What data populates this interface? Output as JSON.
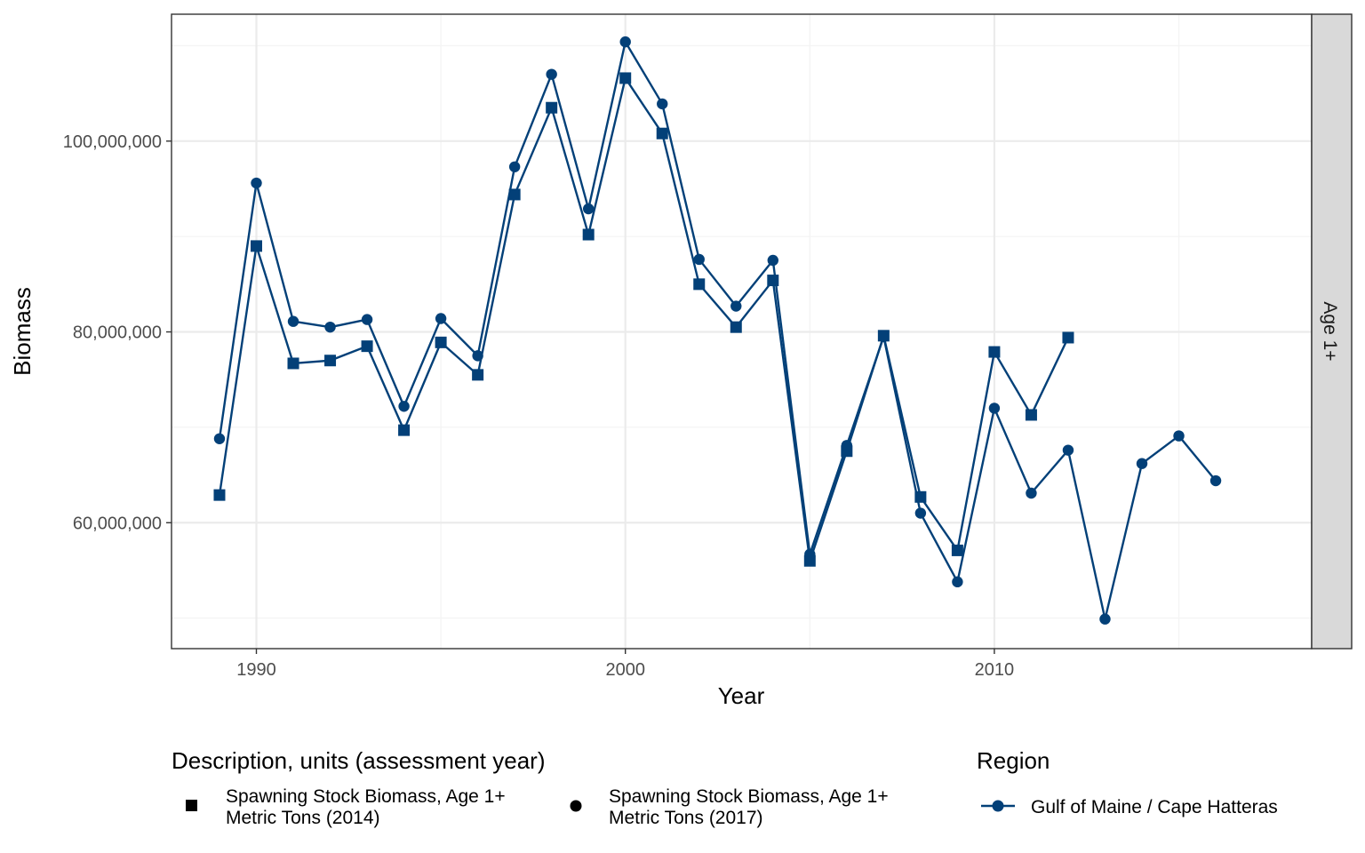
{
  "colors": {
    "series": "#034078",
    "grid_major": "#ebebeb",
    "grid_minor": "#f4f4f4",
    "panel_border": "#333333",
    "strip_fill": "#d9d9d9",
    "legend_key_black": "#000000"
  },
  "chart_data": {
    "type": "line",
    "xlabel": "Year",
    "ylabel": "Biomass",
    "xlim": [
      1987.7,
      2018.6
    ],
    "ylim": [
      46800000,
      113300000
    ],
    "x_ticks": [
      1990,
      2000,
      2010
    ],
    "x_tick_labels": [
      "1990",
      "2000",
      "2010"
    ],
    "x_minor_ticks": [
      1995,
      2005,
      2015
    ],
    "y_ticks": [
      60000000,
      80000000,
      100000000
    ],
    "y_tick_labels": [
      "60,000,000",
      "80,000,000",
      "100,000,000"
    ],
    "y_minor_ticks": [
      50000000,
      70000000,
      90000000,
      110000000
    ],
    "grid": true,
    "facet_label": "Age 1+",
    "series": [
      {
        "name": "Spawning Stock Biomass, Age 1+ Metric Tons (2014)",
        "marker": "square",
        "region": "Gulf of Maine / Cape Hatteras",
        "x": [
          1989,
          1990,
          1991,
          1992,
          1993,
          1994,
          1995,
          1996,
          1997,
          1998,
          1999,
          2000,
          2001,
          2002,
          2003,
          2004,
          2005,
          2006,
          2007,
          2008,
          2009,
          2010,
          2011,
          2012
        ],
        "values": [
          62900000,
          89000000,
          76700000,
          77000000,
          78500000,
          69700000,
          78900000,
          75500000,
          94400000,
          103500000,
          90200000,
          106600000,
          100800000,
          85000000,
          80500000,
          85400000,
          56000000,
          67500000,
          79600000,
          62700000,
          57100000,
          77900000,
          71300000,
          79400000
        ]
      },
      {
        "name": "Spawning Stock Biomass, Age 1+ Metric Tons (2017)",
        "marker": "circle",
        "region": "Gulf of Maine / Cape Hatteras",
        "x": [
          1989,
          1990,
          1991,
          1992,
          1993,
          1994,
          1995,
          1996,
          1997,
          1998,
          1999,
          2000,
          2001,
          2002,
          2003,
          2004,
          2005,
          2006,
          2007,
          2008,
          2009,
          2010,
          2011,
          2012,
          2013,
          2014,
          2015,
          2016
        ],
        "values": [
          68800000,
          95600000,
          81100000,
          80500000,
          81300000,
          72200000,
          81400000,
          77500000,
          97300000,
          107000000,
          92900000,
          110400000,
          103900000,
          87600000,
          82700000,
          87500000,
          56700000,
          68100000,
          79500000,
          61000000,
          53800000,
          72000000,
          63100000,
          67600000,
          49900000,
          66200000,
          69100000,
          64400000
        ]
      }
    ],
    "legend": {
      "placement": "bottom",
      "shape_title": "Description, units (assessment year)",
      "shape_entries": [
        {
          "line1": "Spawning Stock Biomass, Age 1+",
          "line2": "Metric Tons (2014)",
          "marker": "square"
        },
        {
          "line1": "Spawning Stock Biomass, Age 1+",
          "line2": "Metric Tons (2017)",
          "marker": "circle"
        }
      ],
      "color_title": "Region",
      "color_entries": [
        {
          "label": "Gulf of Maine / Cape Hatteras"
        }
      ]
    }
  }
}
